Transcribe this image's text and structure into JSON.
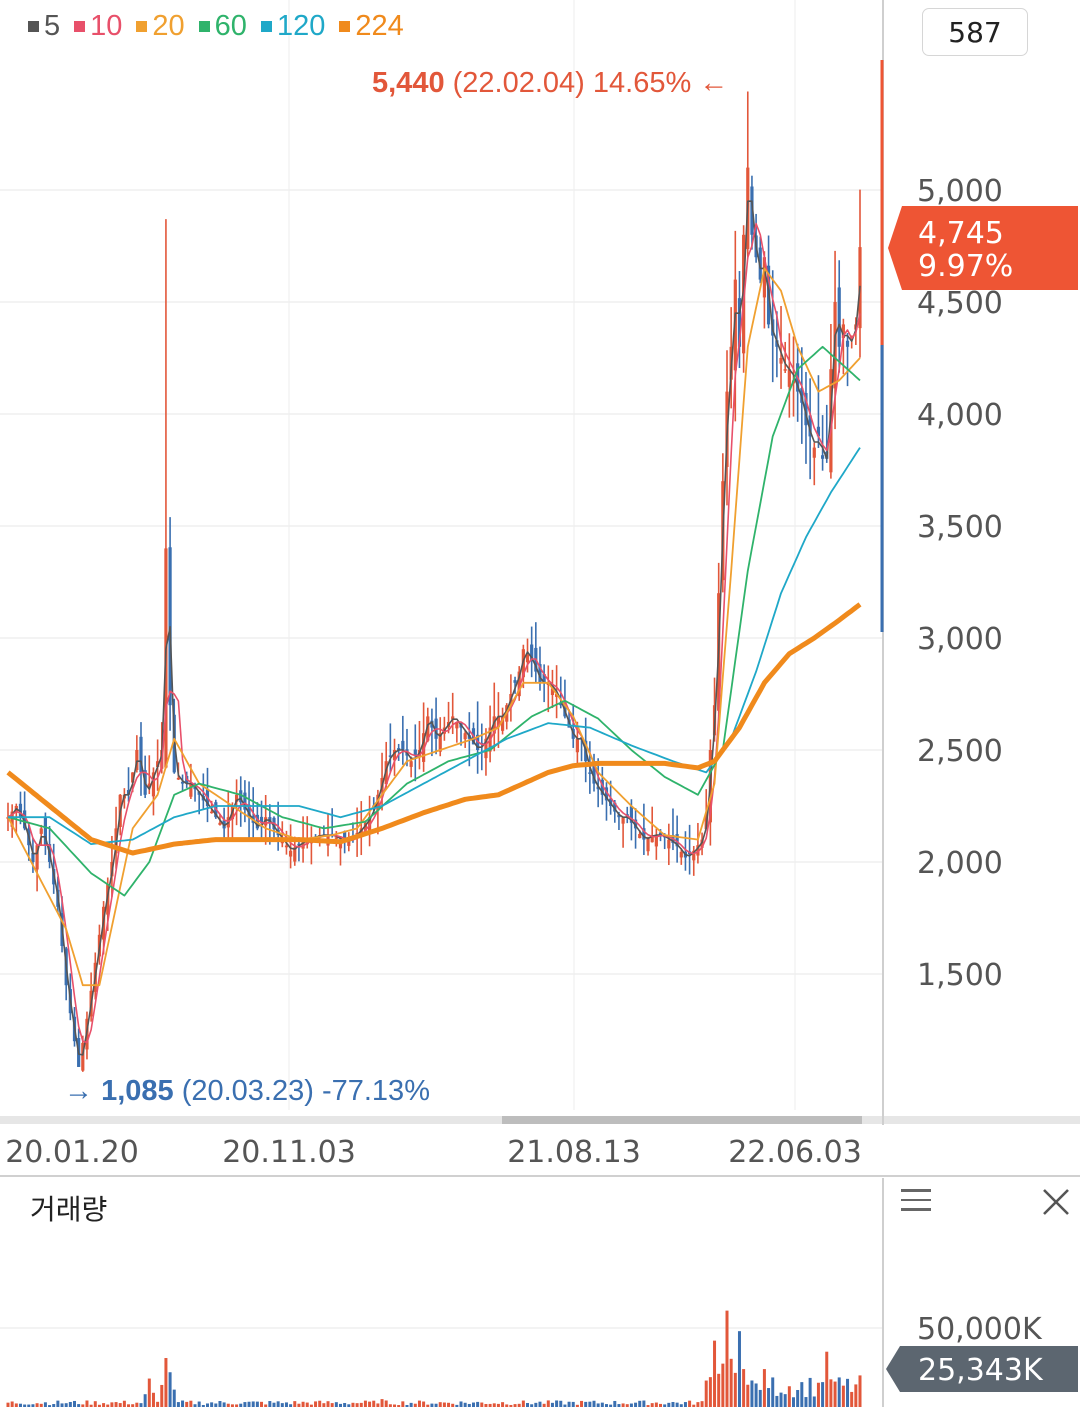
{
  "legend": [
    {
      "label": "5",
      "color": "#555555"
    },
    {
      "label": "10",
      "color": "#e8506a"
    },
    {
      "label": "20",
      "color": "#f0a030"
    },
    {
      "label": "60",
      "color": "#2fb36b"
    },
    {
      "label": "120",
      "color": "#1fa8c8"
    },
    {
      "label": "224",
      "color": "#f08a1c"
    }
  ],
  "count_box": "587",
  "current_price": {
    "value": "4,745",
    "change": "9.97%",
    "color": "#ee5534"
  },
  "current_volume": {
    "value": "25,343K",
    "color": "#5c6670"
  },
  "high_annotation": {
    "value": "5,440",
    "date": "(22.02.04)",
    "pct": "14.65%",
    "arrow": "←",
    "color": "#e2573a"
  },
  "low_annotation": {
    "value": "1,085",
    "date": "(20.03.23)",
    "pct": "-77.13%",
    "arrow": "→",
    "color": "#3a6fb0"
  },
  "volume_title": "거래량",
  "icons": {
    "menu": "menu-icon",
    "close": "close-icon"
  },
  "chart_data": {
    "type": "line",
    "price_axis": {
      "ticks": [
        1500,
        2000,
        2500,
        3000,
        3500,
        4000,
        4500,
        5000
      ],
      "tick_labels": [
        "1,500",
        "2,000",
        "2,500",
        "3,000",
        "3,500",
        "4,000",
        "4,500",
        "5,000"
      ],
      "range": [
        1000,
        5800
      ]
    },
    "x_ticks": [
      "20.01.20",
      "20.11.03",
      "21.08.13",
      "22.06.03"
    ],
    "volume_axis": {
      "tick_labels": [
        "50,000K"
      ]
    },
    "candle_colors": {
      "up": "#e2573a",
      "down": "#3a6fb0"
    },
    "price_keypoints": [
      [
        0,
        2200
      ],
      [
        2,
        2250
      ],
      [
        4,
        2150
      ],
      [
        6,
        2000
      ],
      [
        8,
        2150
      ],
      [
        10,
        2000
      ],
      [
        12,
        1800
      ],
      [
        14,
        1450
      ],
      [
        16,
        1200
      ],
      [
        17,
        1085
      ],
      [
        19,
        1300
      ],
      [
        21,
        1550
      ],
      [
        23,
        1800
      ],
      [
        25,
        2000
      ],
      [
        27,
        2300
      ],
      [
        29,
        2300
      ],
      [
        31,
        2500
      ],
      [
        33,
        2300
      ],
      [
        35,
        2400
      ],
      [
        37,
        2500
      ],
      [
        38,
        3400
      ],
      [
        39,
        2700
      ],
      [
        40,
        2400
      ],
      [
        42,
        2350
      ],
      [
        44,
        2350
      ],
      [
        46,
        2300
      ],
      [
        48,
        2250
      ],
      [
        50,
        2200
      ],
      [
        52,
        2150
      ],
      [
        55,
        2300
      ],
      [
        58,
        2200
      ],
      [
        60,
        2150
      ],
      [
        62,
        2200
      ],
      [
        65,
        2120
      ],
      [
        68,
        2050
      ],
      [
        70,
        2080
      ],
      [
        72,
        2100
      ],
      [
        75,
        2120
      ],
      [
        78,
        2120
      ],
      [
        80,
        2100
      ],
      [
        82,
        2090
      ],
      [
        85,
        2150
      ],
      [
        87,
        2200
      ],
      [
        89,
        2300
      ],
      [
        91,
        2450
      ],
      [
        93,
        2500
      ],
      [
        95,
        2500
      ],
      [
        97,
        2450
      ],
      [
        99,
        2500
      ],
      [
        101,
        2650
      ],
      [
        103,
        2550
      ],
      [
        105,
        2600
      ],
      [
        107,
        2650
      ],
      [
        109,
        2600
      ],
      [
        111,
        2550
      ],
      [
        113,
        2500
      ],
      [
        115,
        2550
      ],
      [
        117,
        2650
      ],
      [
        119,
        2650
      ],
      [
        121,
        2750
      ],
      [
        123,
        2850
      ],
      [
        124,
        2950
      ],
      [
        126,
        2900
      ],
      [
        128,
        2800
      ],
      [
        130,
        2800
      ],
      [
        132,
        2750
      ],
      [
        134,
        2650
      ],
      [
        136,
        2550
      ],
      [
        138,
        2550
      ],
      [
        139,
        2450
      ],
      [
        141,
        2350
      ],
      [
        143,
        2300
      ],
      [
        145,
        2250
      ],
      [
        147,
        2200
      ],
      [
        149,
        2200
      ],
      [
        151,
        2150
      ],
      [
        153,
        2100
      ],
      [
        155,
        2120
      ],
      [
        157,
        2120
      ],
      [
        159,
        2100
      ],
      [
        161,
        2070
      ],
      [
        163,
        2020
      ],
      [
        165,
        2050
      ],
      [
        167,
        2100
      ],
      [
        168,
        2200
      ],
      [
        169,
        2500
      ],
      [
        170,
        2700
      ],
      [
        171,
        3200
      ],
      [
        172,
        3700
      ],
      [
        173,
        4100
      ],
      [
        174,
        4300
      ],
      [
        175,
        4600
      ],
      [
        176,
        4300
      ],
      [
        177,
        4800
      ],
      [
        178,
        5100
      ],
      [
        179,
        4800
      ],
      [
        180,
        4700
      ],
      [
        181,
        4600
      ],
      [
        182,
        4700
      ],
      [
        183,
        4400
      ],
      [
        184,
        4350
      ],
      [
        185,
        4300
      ],
      [
        186,
        4250
      ],
      [
        187,
        4200
      ],
      [
        188,
        4200
      ],
      [
        189,
        4150
      ],
      [
        190,
        4100
      ],
      [
        191,
        4050
      ],
      [
        192,
        3950
      ],
      [
        193,
        3900
      ],
      [
        194,
        3850
      ],
      [
        195,
        3900
      ],
      [
        196,
        3800
      ],
      [
        197,
        3800
      ],
      [
        198,
        4200
      ],
      [
        199,
        4500
      ],
      [
        200,
        4300
      ],
      [
        201,
        4400
      ],
      [
        202,
        4300
      ],
      [
        203,
        4350
      ],
      [
        204,
        4400
      ],
      [
        205,
        4745
      ]
    ],
    "ma_keypoints": {
      "20": [
        [
          0,
          2200
        ],
        [
          14,
          1700
        ],
        [
          18,
          1450
        ],
        [
          22,
          1450
        ],
        [
          26,
          1800
        ],
        [
          30,
          2150
        ],
        [
          36,
          2300
        ],
        [
          40,
          2550
        ],
        [
          46,
          2350
        ],
        [
          54,
          2250
        ],
        [
          62,
          2150
        ],
        [
          70,
          2100
        ],
        [
          78,
          2120
        ],
        [
          84,
          2150
        ],
        [
          90,
          2300
        ],
        [
          96,
          2450
        ],
        [
          104,
          2500
        ],
        [
          112,
          2550
        ],
        [
          118,
          2600
        ],
        [
          124,
          2800
        ],
        [
          130,
          2800
        ],
        [
          136,
          2650
        ],
        [
          142,
          2400
        ],
        [
          150,
          2250
        ],
        [
          158,
          2120
        ],
        [
          166,
          2100
        ],
        [
          170,
          2350
        ],
        [
          174,
          3300
        ],
        [
          178,
          4300
        ],
        [
          182,
          4650
        ],
        [
          186,
          4550
        ],
        [
          190,
          4300
        ],
        [
          195,
          4100
        ],
        [
          200,
          4150
        ],
        [
          205,
          4250
        ]
      ],
      "60": [
        [
          0,
          2200
        ],
        [
          10,
          2150
        ],
        [
          20,
          1950
        ],
        [
          28,
          1850
        ],
        [
          34,
          2000
        ],
        [
          40,
          2300
        ],
        [
          46,
          2350
        ],
        [
          56,
          2300
        ],
        [
          66,
          2200
        ],
        [
          76,
          2150
        ],
        [
          86,
          2180
        ],
        [
          96,
          2350
        ],
        [
          106,
          2450
        ],
        [
          116,
          2500
        ],
        [
          126,
          2650
        ],
        [
          134,
          2720
        ],
        [
          142,
          2640
        ],
        [
          150,
          2500
        ],
        [
          158,
          2380
        ],
        [
          166,
          2300
        ],
        [
          172,
          2500
        ],
        [
          178,
          3300
        ],
        [
          184,
          3900
        ],
        [
          190,
          4200
        ],
        [
          196,
          4300
        ],
        [
          202,
          4200
        ],
        [
          205,
          4150
        ]
      ],
      "120": [
        [
          0,
          2200
        ],
        [
          10,
          2200
        ],
        [
          20,
          2080
        ],
        [
          30,
          2100
        ],
        [
          40,
          2200
        ],
        [
          50,
          2250
        ],
        [
          60,
          2250
        ],
        [
          70,
          2250
        ],
        [
          80,
          2200
        ],
        [
          90,
          2250
        ],
        [
          100,
          2350
        ],
        [
          110,
          2450
        ],
        [
          120,
          2550
        ],
        [
          130,
          2620
        ],
        [
          140,
          2600
        ],
        [
          150,
          2520
        ],
        [
          160,
          2450
        ],
        [
          168,
          2400
        ],
        [
          174,
          2550
        ],
        [
          180,
          2850
        ],
        [
          186,
          3200
        ],
        [
          192,
          3450
        ],
        [
          198,
          3650
        ],
        [
          205,
          3850
        ]
      ],
      "224": [
        [
          0,
          2400
        ],
        [
          10,
          2250
        ],
        [
          20,
          2100
        ],
        [
          30,
          2040
        ],
        [
          40,
          2080
        ],
        [
          50,
          2100
        ],
        [
          60,
          2100
        ],
        [
          70,
          2100
        ],
        [
          80,
          2090
        ],
        [
          90,
          2150
        ],
        [
          100,
          2220
        ],
        [
          110,
          2280
        ],
        [
          118,
          2300
        ],
        [
          124,
          2350
        ],
        [
          130,
          2400
        ],
        [
          136,
          2430
        ],
        [
          142,
          2440
        ],
        [
          150,
          2440
        ],
        [
          158,
          2440
        ],
        [
          166,
          2420
        ],
        [
          170,
          2450
        ],
        [
          176,
          2600
        ],
        [
          182,
          2800
        ],
        [
          188,
          2930
        ],
        [
          194,
          3000
        ],
        [
          200,
          3080
        ],
        [
          205,
          3150
        ]
      ]
    },
    "volume_peaks": [
      [
        34,
        18000
      ],
      [
        38,
        31000
      ],
      [
        39,
        22000
      ],
      [
        90,
        5000
      ],
      [
        170,
        42000
      ],
      [
        173,
        61000
      ],
      [
        176,
        48000
      ],
      [
        182,
        24000
      ],
      [
        197,
        35000
      ],
      [
        205,
        20000
      ]
    ]
  }
}
